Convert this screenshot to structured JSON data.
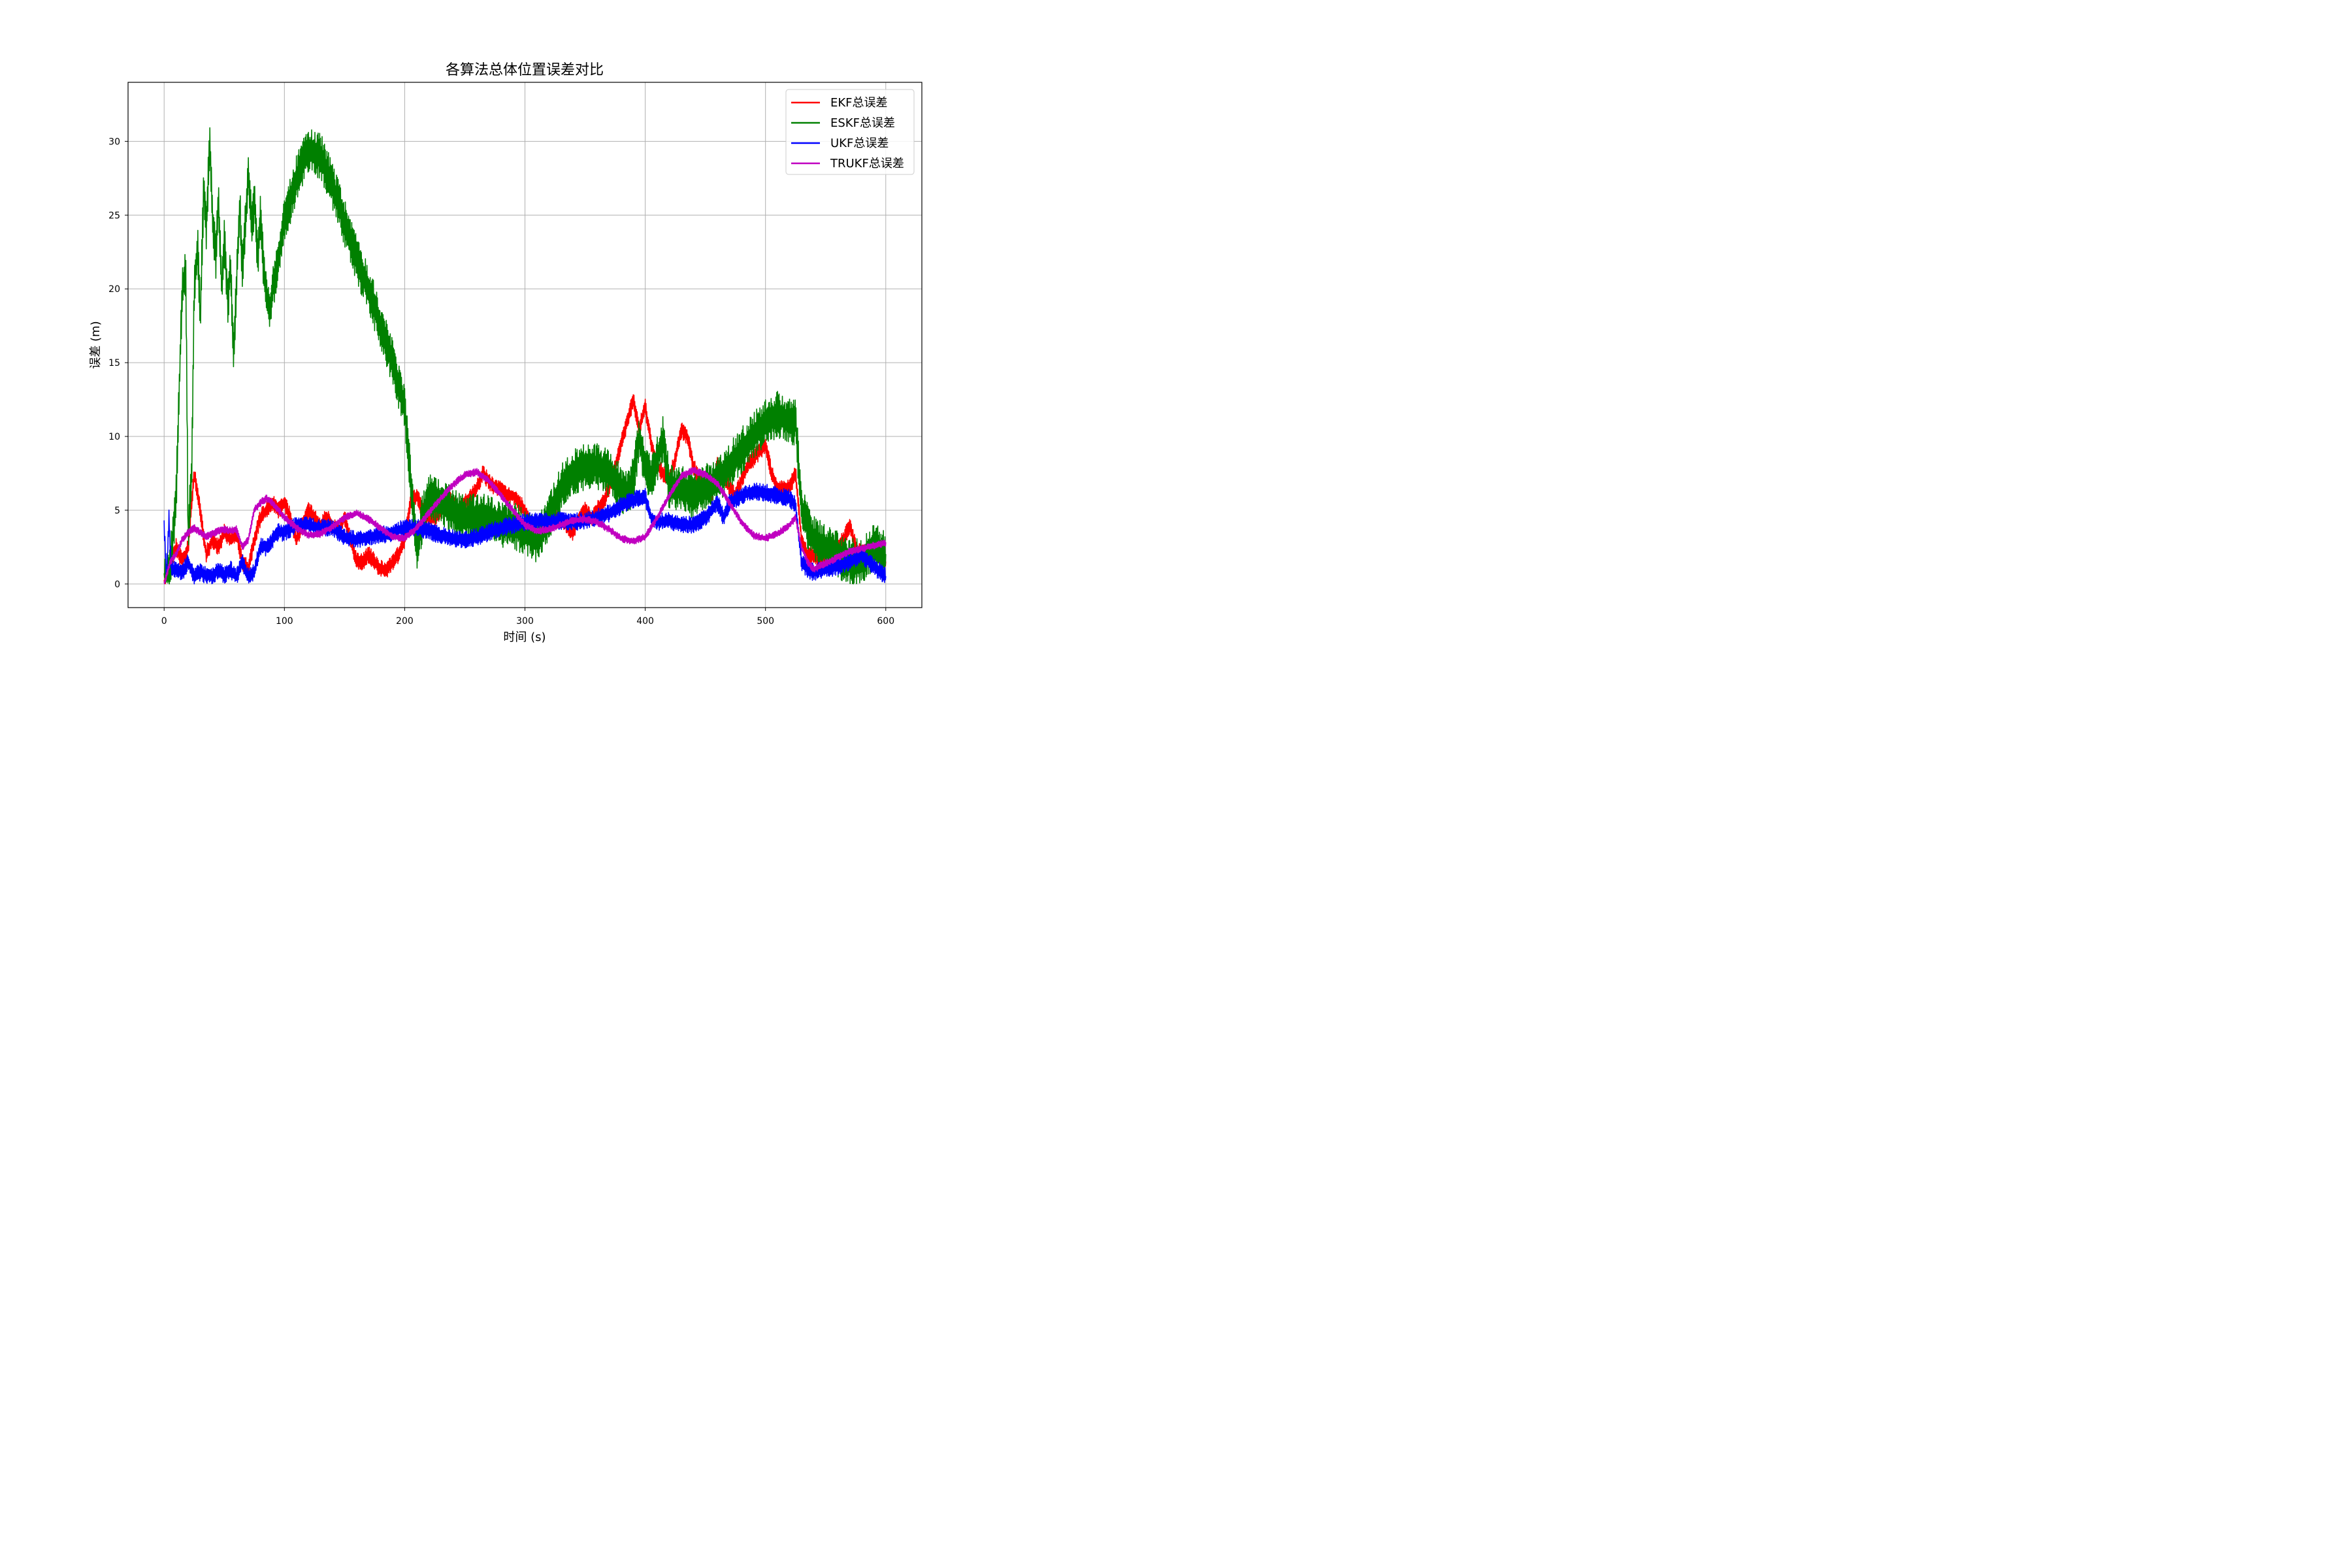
{
  "chart_data": {
    "type": "line",
    "title": "各算法总体位置误差对比",
    "xlabel": "时间 (s)",
    "ylabel": "误差 (m)",
    "xlim": [
      -30,
      630
    ],
    "ylim": [
      -1.6,
      34.0
    ],
    "xticks": [
      0,
      100,
      200,
      300,
      400,
      500,
      600
    ],
    "yticks": [
      0,
      5,
      10,
      15,
      20,
      25,
      30
    ],
    "grid": true,
    "legend_position": "top-right",
    "series": [
      {
        "name": "EKF总误差",
        "color": "#ff0000",
        "noise": 0.6,
        "x": [
          0,
          5,
          10,
          15,
          20,
          25,
          30,
          35,
          40,
          45,
          50,
          55,
          60,
          65,
          70,
          75,
          80,
          85,
          90,
          95,
          100,
          105,
          110,
          115,
          120,
          125,
          130,
          135,
          140,
          145,
          150,
          155,
          160,
          165,
          170,
          175,
          180,
          185,
          190,
          195,
          200,
          205,
          210,
          215,
          220,
          225,
          230,
          235,
          240,
          245,
          250,
          255,
          260,
          265,
          270,
          275,
          280,
          285,
          290,
          295,
          300,
          305,
          310,
          315,
          320,
          325,
          330,
          335,
          340,
          345,
          350,
          355,
          360,
          365,
          370,
          375,
          380,
          385,
          390,
          395,
          400,
          405,
          410,
          415,
          420,
          425,
          430,
          435,
          440,
          445,
          450,
          455,
          460,
          465,
          470,
          475,
          480,
          485,
          490,
          495,
          500,
          505,
          510,
          515,
          520,
          525,
          530,
          535,
          540,
          545,
          550,
          555,
          560,
          565,
          570,
          575,
          580,
          585,
          590,
          595,
          600
        ],
        "values": [
          0.0,
          1.5,
          2.5,
          1.5,
          2.5,
          7.5,
          5.0,
          2.0,
          3.0,
          2.5,
          3.5,
          3.0,
          3.5,
          1.5,
          1.0,
          3.0,
          4.5,
          5.0,
          5.5,
          5.0,
          5.5,
          4.5,
          3.0,
          4.0,
          5.0,
          4.5,
          4.0,
          4.5,
          4.0,
          3.5,
          4.5,
          3.0,
          1.5,
          1.5,
          2.0,
          1.5,
          1.0,
          1.0,
          1.5,
          2.0,
          3.0,
          5.5,
          6.0,
          5.0,
          4.5,
          4.5,
          5.0,
          6.0,
          5.5,
          5.0,
          5.5,
          6.0,
          6.5,
          7.5,
          7.0,
          6.5,
          6.5,
          6.0,
          6.0,
          5.5,
          5.0,
          4.0,
          3.0,
          3.5,
          4.0,
          4.5,
          4.5,
          4.0,
          3.5,
          4.5,
          5.0,
          4.5,
          5.0,
          5.5,
          6.5,
          8.0,
          9.5,
          11.0,
          12.5,
          10.5,
          12.0,
          9.5,
          8.0,
          7.5,
          7.0,
          8.5,
          10.5,
          10.0,
          8.0,
          7.0,
          6.5,
          6.0,
          8.0,
          7.5,
          6.5,
          6.0,
          7.0,
          8.0,
          8.5,
          9.0,
          9.5,
          7.5,
          6.5,
          6.5,
          6.5,
          7.5,
          3.0,
          2.0,
          2.0,
          1.5,
          1.5,
          2.0,
          2.5,
          3.0,
          4.0,
          2.5,
          2.0,
          2.5,
          2.5,
          2.0,
          1.5
        ]
      },
      {
        "name": "ESKF总误差",
        "color": "#008000",
        "noise": 1.6,
        "x": [
          0,
          5,
          10,
          15,
          18,
          20,
          23,
          25,
          28,
          30,
          33,
          35,
          38,
          40,
          43,
          45,
          48,
          50,
          53,
          55,
          58,
          60,
          63,
          65,
          68,
          70,
          73,
          75,
          78,
          80,
          83,
          85,
          88,
          90,
          95,
          100,
          110,
          120,
          130,
          140,
          150,
          160,
          170,
          180,
          190,
          195,
          200,
          203,
          206,
          210,
          215,
          220,
          230,
          240,
          250,
          260,
          270,
          280,
          290,
          300,
          310,
          320,
          330,
          340,
          350,
          360,
          370,
          380,
          385,
          390,
          395,
          400,
          405,
          410,
          415,
          420,
          430,
          440,
          450,
          460,
          470,
          480,
          490,
          500,
          510,
          520,
          525,
          530,
          540,
          550,
          560,
          570,
          580,
          590,
          600
        ],
        "values": [
          0.0,
          1.0,
          6.0,
          20.0,
          21.0,
          3.0,
          8.0,
          20.0,
          23.0,
          18.0,
          27.0,
          24.0,
          30.0,
          25.0,
          22.0,
          26.0,
          20.0,
          23.5,
          19.0,
          21.5,
          15.5,
          20.0,
          26.0,
          21.0,
          25.0,
          28.0,
          24.0,
          26.0,
          22.0,
          25.0,
          21.0,
          19.5,
          18.5,
          20.0,
          22.0,
          24.5,
          27.5,
          29.5,
          29.0,
          27.0,
          24.5,
          22.0,
          20.0,
          17.5,
          15.0,
          13.5,
          12.0,
          9.0,
          6.0,
          2.5,
          4.5,
          6.0,
          5.5,
          5.0,
          4.5,
          4.5,
          4.5,
          4.0,
          4.0,
          3.5,
          3.0,
          4.5,
          6.5,
          7.5,
          8.0,
          8.0,
          7.5,
          6.5,
          6.0,
          7.0,
          10.0,
          8.0,
          7.0,
          8.5,
          10.0,
          6.5,
          6.5,
          6.0,
          6.5,
          7.0,
          8.0,
          9.0,
          10.0,
          11.0,
          11.5,
          11.0,
          11.0,
          5.0,
          3.0,
          2.5,
          2.0,
          1.5,
          1.5,
          2.5,
          2.0
        ]
      },
      {
        "name": "UKF总误差",
        "color": "#0000ff",
        "noise": 0.6,
        "x": [
          0,
          2,
          4,
          6,
          10,
          15,
          20,
          25,
          30,
          35,
          40,
          45,
          50,
          55,
          60,
          65,
          70,
          75,
          80,
          85,
          90,
          95,
          100,
          110,
          120,
          130,
          140,
          150,
          160,
          170,
          180,
          190,
          200,
          210,
          220,
          230,
          240,
          250,
          260,
          270,
          280,
          290,
          300,
          310,
          320,
          330,
          340,
          350,
          360,
          370,
          380,
          390,
          400,
          405,
          410,
          420,
          430,
          440,
          450,
          455,
          460,
          465,
          470,
          480,
          490,
          500,
          510,
          520,
          525,
          530,
          535,
          540,
          550,
          560,
          570,
          580,
          590,
          600
        ],
        "values": [
          4.0,
          0.3,
          4.5,
          1.0,
          1.0,
          0.8,
          1.5,
          0.5,
          0.8,
          0.6,
          0.5,
          1.0,
          0.6,
          1.0,
          0.5,
          1.5,
          0.5,
          0.8,
          2.5,
          2.5,
          3.0,
          3.5,
          3.5,
          4.0,
          4.0,
          3.8,
          3.8,
          3.2,
          3.0,
          3.2,
          3.3,
          3.5,
          3.8,
          3.8,
          3.6,
          3.3,
          3.1,
          3.0,
          3.2,
          3.5,
          3.8,
          4.0,
          4.2,
          4.3,
          4.2,
          4.3,
          4.2,
          4.3,
          4.5,
          4.8,
          5.3,
          5.7,
          5.9,
          4.5,
          4.2,
          4.3,
          4.0,
          4.0,
          4.5,
          5.0,
          5.5,
          4.5,
          5.5,
          6.0,
          6.3,
          6.2,
          6.0,
          5.8,
          5.3,
          1.5,
          1.0,
          0.8,
          1.0,
          1.2,
          1.5,
          2.0,
          1.2,
          0.5
        ]
      },
      {
        "name": "TRUKF总误差",
        "color": "#c000c0",
        "noise": 0.25,
        "x": [
          0,
          5,
          10,
          15,
          20,
          25,
          30,
          35,
          40,
          45,
          50,
          55,
          60,
          65,
          70,
          75,
          80,
          85,
          90,
          95,
          100,
          110,
          120,
          130,
          140,
          150,
          160,
          170,
          180,
          190,
          200,
          210,
          220,
          230,
          240,
          250,
          260,
          270,
          280,
          290,
          300,
          310,
          320,
          330,
          340,
          350,
          360,
          370,
          380,
          390,
          400,
          410,
          420,
          430,
          440,
          450,
          460,
          470,
          480,
          490,
          500,
          510,
          520,
          525,
          530,
          535,
          540,
          550,
          560,
          570,
          580,
          590,
          600
        ],
        "values": [
          0.0,
          1.5,
          2.0,
          3.0,
          3.5,
          3.8,
          3.5,
          3.2,
          3.4,
          3.6,
          3.7,
          3.6,
          3.7,
          2.5,
          3.0,
          5.0,
          5.5,
          5.8,
          5.5,
          5.0,
          4.5,
          3.8,
          3.3,
          3.4,
          3.9,
          4.5,
          4.8,
          4.4,
          3.8,
          3.2,
          3.1,
          3.8,
          4.8,
          5.8,
          6.7,
          7.4,
          7.6,
          7.0,
          6.0,
          5.0,
          4.0,
          3.6,
          3.7,
          4.0,
          4.3,
          4.4,
          4.2,
          3.7,
          3.1,
          2.9,
          3.2,
          4.5,
          6.0,
          7.3,
          7.7,
          7.4,
          6.8,
          5.5,
          4.2,
          3.3,
          3.1,
          3.4,
          4.0,
          4.5,
          2.5,
          1.5,
          1.0,
          1.4,
          1.8,
          2.2,
          2.4,
          2.6,
          2.8
        ]
      }
    ]
  }
}
